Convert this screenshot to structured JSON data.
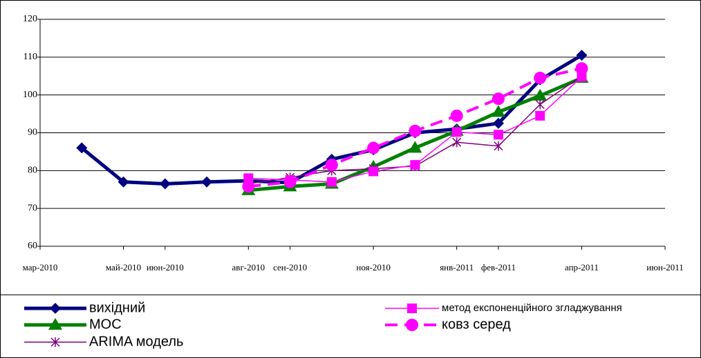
{
  "chart_data": {
    "type": "line",
    "x": [
      "2010-04",
      "2010-05",
      "2010-06",
      "2010-07",
      "2010-08",
      "2010-09",
      "2010-10",
      "2010-11",
      "2010-12",
      "2011-01",
      "2011-02",
      "2011-03",
      "2011-04"
    ],
    "xlim": [
      "2010-03",
      "2011-06"
    ],
    "xticks": [
      {
        "value": "2010-03",
        "label": "мар-2010"
      },
      {
        "value": "2010-05",
        "label": "май-2010"
      },
      {
        "value": "2010-06",
        "label": "июн-2010"
      },
      {
        "value": "2010-08",
        "label": "авг-2010"
      },
      {
        "value": "2010-09",
        "label": "сен-2010"
      },
      {
        "value": "2010-11",
        "label": "ноя-2010"
      },
      {
        "value": "2011-01",
        "label": "янв-2011"
      },
      {
        "value": "2011-02",
        "label": "фев-2011"
      },
      {
        "value": "2011-04",
        "label": "апр-2011"
      },
      {
        "value": "2011-06",
        "label": "июн-2011"
      }
    ],
    "ylim": [
      60,
      120
    ],
    "yticks": [
      60,
      70,
      80,
      90,
      100,
      110,
      120
    ],
    "grid": true,
    "series": [
      {
        "name": "вихідний",
        "color": "#000080",
        "marker": "diamond",
        "width": 5,
        "values": [
          86,
          77,
          76.5,
          77,
          77.3,
          76.8,
          83,
          85.5,
          90,
          91,
          92.5,
          104,
          110.5
        ]
      },
      {
        "name": "МОС",
        "color": "#008000",
        "marker": "triangle",
        "width": 5,
        "values": [
          null,
          null,
          null,
          null,
          74.8,
          75.8,
          76.5,
          81,
          86,
          90.5,
          95.5,
          99.8,
          104.5
        ]
      },
      {
        "name": "ARIMA модель",
        "color": "#800080",
        "marker": "asterisk",
        "width": 1.5,
        "values": [
          null,
          null,
          null,
          null,
          76.5,
          78.2,
          80,
          80.5,
          81.2,
          87.5,
          86.5,
          97.5,
          105
        ]
      },
      {
        "name": "метод експоненційного згладжування",
        "color": "#ff00ff",
        "marker": "square",
        "width": 1.5,
        "values": [
          null,
          null,
          null,
          null,
          78,
          77.5,
          77,
          79.8,
          81.5,
          90.2,
          89.5,
          94.5,
          104.8
        ]
      },
      {
        "name": "ковз серед",
        "color": "#ff00ff",
        "marker": "circle",
        "width": 4,
        "dash": true,
        "values": [
          null,
          null,
          null,
          null,
          75.8,
          77,
          81.5,
          86,
          90.5,
          94.5,
          99,
          104.5,
          107
        ]
      }
    ]
  }
}
